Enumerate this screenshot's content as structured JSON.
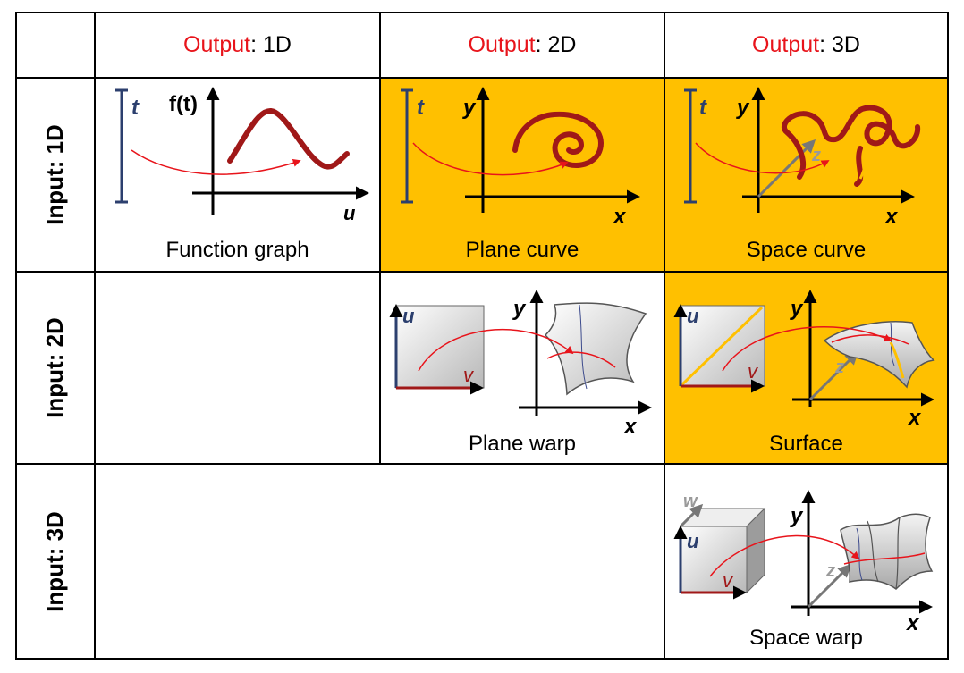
{
  "header": {
    "columns": [
      {
        "prefix": "Output",
        "suffix": ": 1D"
      },
      {
        "prefix": "Output",
        "suffix": ": 2D"
      },
      {
        "prefix": "Output",
        "suffix": ": 3D"
      }
    ]
  },
  "rows": [
    {
      "label": "Input: 1D"
    },
    {
      "label": "Input: 2D"
    },
    {
      "label": "Input: 3D"
    }
  ],
  "cells": {
    "function_graph": {
      "caption": "Function graph",
      "param": "t",
      "y_label": "f(t)",
      "x_label": "u"
    },
    "plane_curve": {
      "caption": "Plane curve",
      "param": "t",
      "y_label": "y",
      "x_label": "x"
    },
    "space_curve": {
      "caption": "Space curve",
      "param": "t",
      "y_label": "y",
      "x_label": "x",
      "z_label": "z"
    },
    "plane_warp": {
      "caption": "Plane warp",
      "u_label": "u",
      "v_label": "v",
      "y_label": "y",
      "x_label": "x"
    },
    "surface": {
      "caption": "Surface",
      "u_label": "u",
      "v_label": "v",
      "y_label": "y",
      "x_label": "x",
      "z_label": "z"
    },
    "space_warp": {
      "caption": "Space warp",
      "w_label": "w",
      "u_label": "u",
      "v_label": "v",
      "y_label": "y",
      "x_label": "x",
      "z_label": "z"
    }
  },
  "colors": {
    "highlight": "#FFC000",
    "output_word": "#e8141b",
    "curve": "#a01818",
    "arrow": "#e8141b",
    "param_axis": "#2c3f6e"
  },
  "highlighted_cells": [
    "plane_curve",
    "space_curve",
    "surface"
  ]
}
